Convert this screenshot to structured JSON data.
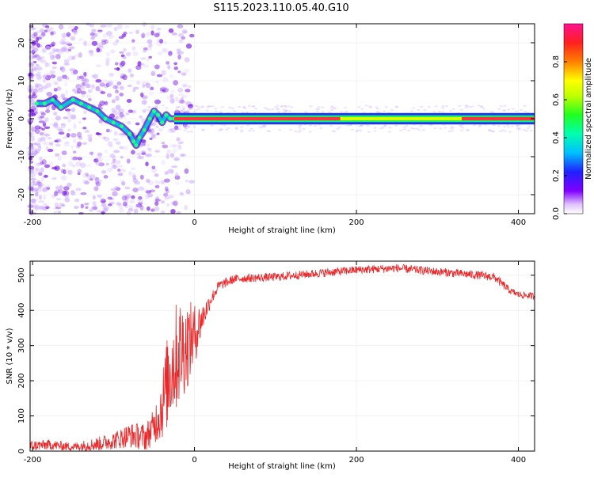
{
  "title": "S115.2023.110.05.40.G10",
  "colors": {
    "snr_line": "#e8282a",
    "band_center": "#ff3344",
    "band_edge": "#00ff66"
  },
  "chart_data": [
    {
      "type": "heatmap",
      "name": "spectrogram",
      "xlabel": "Height of straight line (km)",
      "ylabel": "Frequency (Hz)",
      "xlim": [
        -203,
        420
      ],
      "ylim": [
        -25,
        25
      ],
      "xticks": [
        -200,
        0,
        200,
        400
      ],
      "yticks": [
        -20,
        -10,
        0,
        10,
        20
      ],
      "grid": true,
      "colorbar": {
        "label": "Normalized spectral amplitude",
        "range": [
          0,
          1
        ],
        "ticks": [
          "0.0",
          "0.2",
          "0.4",
          "0.6",
          "0.8"
        ],
        "colormap": "rainbow-pink"
      },
      "ridge": {
        "x": [
          -195,
          -185,
          -175,
          -165,
          -150,
          -140,
          -130,
          -120,
          -110,
          -100,
          -90,
          -80,
          -75,
          -72,
          -68,
          -62,
          -55,
          -50,
          -45,
          -40,
          -35,
          -30,
          -25
        ],
        "y": [
          4,
          4,
          5,
          3,
          5,
          4,
          3,
          2,
          0,
          -1,
          -2,
          -4,
          -6,
          -7,
          -5,
          -3,
          0,
          2,
          1,
          -1,
          1,
          0,
          0
        ]
      },
      "steady_band": {
        "x_start": -25,
        "x_end": 420,
        "freq_hz": 0,
        "half_width_hz": 1.5
      }
    },
    {
      "type": "line",
      "name": "snr",
      "xlabel": "Height of straight line (km)",
      "ylabel": "SNR (10 * v/v)",
      "xlim": [
        -203,
        420
      ],
      "ylim": [
        0,
        540
      ],
      "xticks": [
        -200,
        0,
        200,
        400
      ],
      "yticks": [
        0,
        100,
        200,
        300,
        400,
        500
      ],
      "grid": true,
      "envelope": {
        "x": [
          -203,
          -180,
          -150,
          -120,
          -100,
          -80,
          -60,
          -50,
          -40,
          -30,
          -20,
          -10,
          0,
          10,
          20,
          30,
          50,
          100,
          150,
          200,
          250,
          300,
          350,
          370,
          380,
          390,
          400,
          420
        ],
        "y": [
          15,
          18,
          12,
          20,
          30,
          45,
          40,
          70,
          130,
          230,
          280,
          300,
          330,
          380,
          430,
          470,
          490,
          495,
          505,
          515,
          520,
          510,
          500,
          495,
          475,
          455,
          445,
          440
        ],
        "noise": [
          15,
          15,
          12,
          20,
          25,
          35,
          40,
          50,
          100,
          150,
          160,
          130,
          90,
          40,
          20,
          15,
          12,
          12,
          12,
          12,
          12,
          12,
          12,
          12,
          12,
          10,
          10,
          10
        ]
      }
    }
  ]
}
